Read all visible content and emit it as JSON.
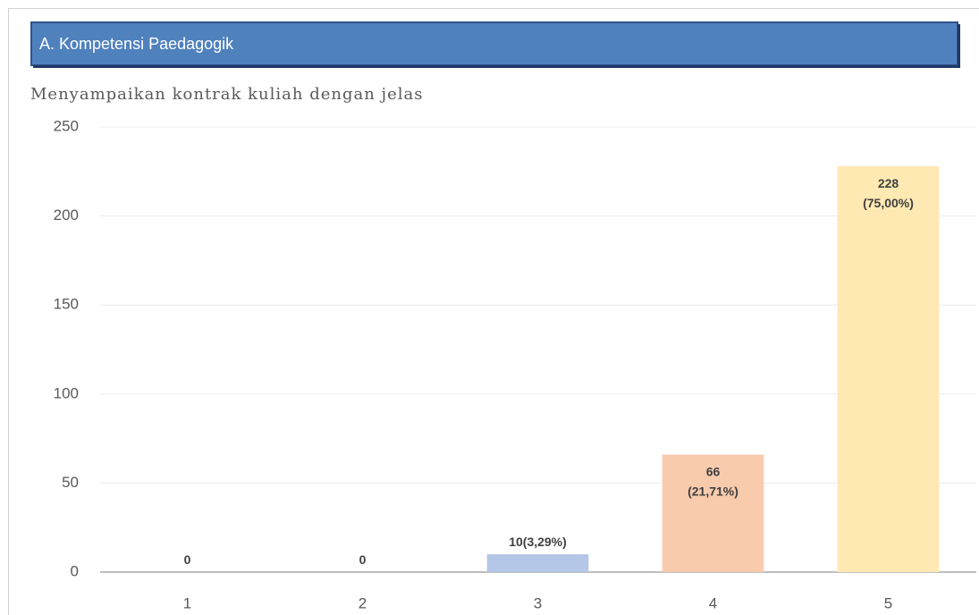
{
  "header": {
    "title": "A. Kompetensi Paedagogik"
  },
  "chart_data": {
    "type": "bar",
    "title": "Menyampaikan kontrak kuliah dengan jelas",
    "categories": [
      "1",
      "2",
      "3",
      "4",
      "5"
    ],
    "values": [
      0,
      0,
      10,
      66,
      228
    ],
    "value_labels": [
      "0",
      "0",
      "10(3,29%)",
      "66\n(21,71%)",
      "228\n(75,00%)"
    ],
    "colors": [
      "#b4c7e7",
      "#b4c7e7",
      "#b4c7e7",
      "#f8cbad",
      "#ffe9b3"
    ],
    "ylim": [
      0,
      250
    ],
    "yticks": [
      0,
      50,
      100,
      150,
      200,
      250
    ],
    "grid": true
  }
}
